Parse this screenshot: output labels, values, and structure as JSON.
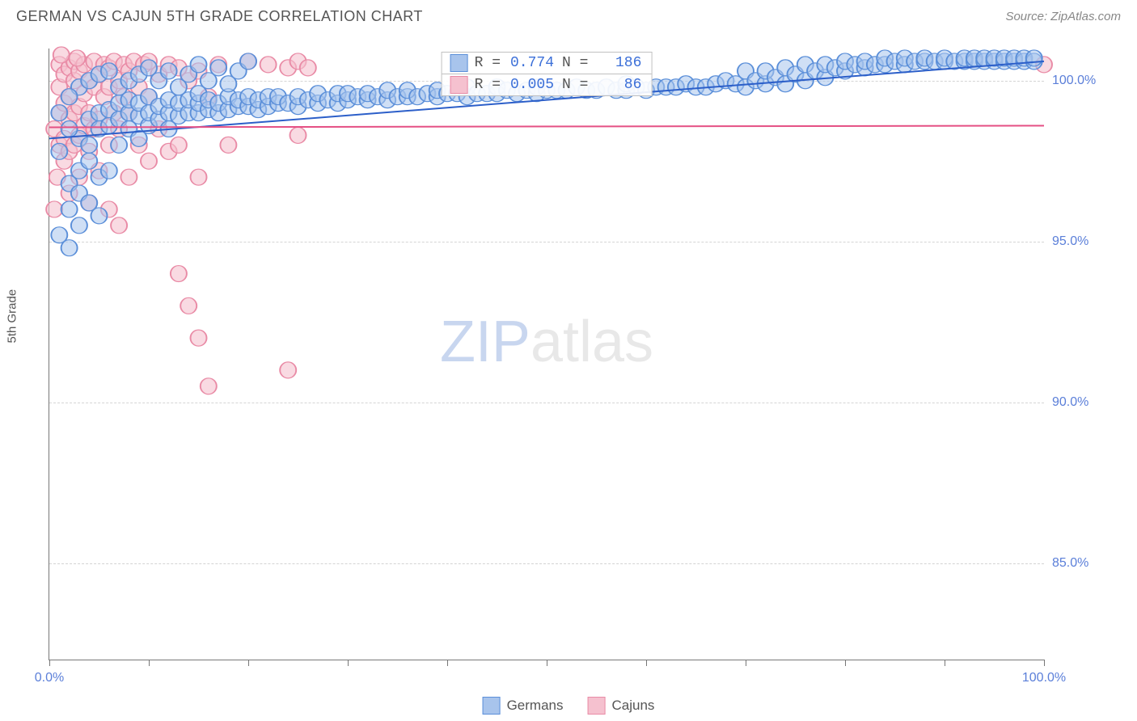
{
  "title": "GERMAN VS CAJUN 5TH GRADE CORRELATION CHART",
  "source": "Source: ZipAtlas.com",
  "ylabel": "5th Grade",
  "watermark_bold": "ZIP",
  "watermark_light": "atlas",
  "chart": {
    "type": "scatter",
    "xlim": [
      0,
      100
    ],
    "ylim": [
      82,
      101
    ],
    "x_ticks": [
      0,
      10,
      20,
      30,
      40,
      50,
      60,
      70,
      80,
      90,
      100
    ],
    "x_tick_labels": {
      "0": "0.0%",
      "100": "100.0%"
    },
    "y_ticks": [
      85,
      90,
      95,
      100
    ],
    "y_tick_labels": [
      "85.0%",
      "90.0%",
      "95.0%",
      "100.0%"
    ],
    "grid_color": "#d4d4d4",
    "background": "#ffffff",
    "axis_color": "#777777",
    "tick_label_color": "#5b7fd9",
    "series": [
      {
        "name": "Germans",
        "color_fill": "#a8c4ec",
        "color_stroke": "#5b8fd9",
        "marker_r": 10,
        "marker_opacity": 0.55,
        "R": "0.774",
        "N": "186",
        "trend": {
          "x1": 0,
          "y1": 98.2,
          "x2": 100,
          "y2": 100.6,
          "color": "#2c5fc9",
          "width": 2
        },
        "points": [
          [
            1,
            95.2
          ],
          [
            2,
            96.0
          ],
          [
            2,
            96.8
          ],
          [
            3,
            96.5
          ],
          [
            3,
            97.2
          ],
          [
            3,
            98.2
          ],
          [
            4,
            97.5
          ],
          [
            4,
            98.0
          ],
          [
            4,
            98.8
          ],
          [
            5,
            95.8
          ],
          [
            5,
            97.0
          ],
          [
            5,
            98.5
          ],
          [
            5,
            99.0
          ],
          [
            6,
            97.2
          ],
          [
            6,
            98.6
          ],
          [
            6,
            99.1
          ],
          [
            7,
            98.0
          ],
          [
            7,
            98.8
          ],
          [
            7,
            99.3
          ],
          [
            8,
            98.5
          ],
          [
            8,
            99.0
          ],
          [
            8,
            99.4
          ],
          [
            9,
            98.2
          ],
          [
            9,
            98.9
          ],
          [
            9,
            99.3
          ],
          [
            10,
            98.6
          ],
          [
            10,
            99.0
          ],
          [
            10,
            99.5
          ],
          [
            11,
            98.8
          ],
          [
            11,
            99.2
          ],
          [
            12,
            98.5
          ],
          [
            12,
            99.0
          ],
          [
            12,
            99.4
          ],
          [
            13,
            98.9
          ],
          [
            13,
            99.3
          ],
          [
            14,
            99.0
          ],
          [
            14,
            99.4
          ],
          [
            15,
            99.0
          ],
          [
            15,
            99.3
          ],
          [
            15,
            99.6
          ],
          [
            16,
            99.1
          ],
          [
            16,
            99.4
          ],
          [
            17,
            99.0
          ],
          [
            17,
            99.3
          ],
          [
            18,
            99.1
          ],
          [
            18,
            99.5
          ],
          [
            19,
            99.2
          ],
          [
            19,
            99.4
          ],
          [
            20,
            99.2
          ],
          [
            20,
            99.5
          ],
          [
            21,
            99.1
          ],
          [
            21,
            99.4
          ],
          [
            22,
            99.2
          ],
          [
            22,
            99.5
          ],
          [
            23,
            99.3
          ],
          [
            23,
            99.5
          ],
          [
            24,
            99.3
          ],
          [
            25,
            99.2
          ],
          [
            25,
            99.5
          ],
          [
            26,
            99.4
          ],
          [
            27,
            99.3
          ],
          [
            27,
            99.6
          ],
          [
            28,
            99.4
          ],
          [
            29,
            99.3
          ],
          [
            29,
            99.6
          ],
          [
            30,
            99.4
          ],
          [
            30,
            99.6
          ],
          [
            31,
            99.5
          ],
          [
            32,
            99.4
          ],
          [
            32,
            99.6
          ],
          [
            33,
            99.5
          ],
          [
            34,
            99.4
          ],
          [
            34,
            99.7
          ],
          [
            35,
            99.5
          ],
          [
            36,
            99.5
          ],
          [
            36,
            99.7
          ],
          [
            37,
            99.5
          ],
          [
            38,
            99.6
          ],
          [
            39,
            99.5
          ],
          [
            39,
            99.7
          ],
          [
            40,
            99.6
          ],
          [
            41,
            99.6
          ],
          [
            42,
            99.5
          ],
          [
            42,
            99.8
          ],
          [
            43,
            99.6
          ],
          [
            44,
            99.6
          ],
          [
            45,
            99.6
          ],
          [
            45,
            99.8
          ],
          [
            46,
            99.7
          ],
          [
            47,
            99.6
          ],
          [
            48,
            99.7
          ],
          [
            49,
            99.6
          ],
          [
            49,
            99.8
          ],
          [
            50,
            99.7
          ],
          [
            51,
            99.7
          ],
          [
            52,
            99.7
          ],
          [
            53,
            99.8
          ],
          [
            54,
            99.7
          ],
          [
            55,
            99.7
          ],
          [
            56,
            99.8
          ],
          [
            57,
            99.7
          ],
          [
            58,
            99.7
          ],
          [
            58,
            99.9
          ],
          [
            59,
            99.8
          ],
          [
            60,
            99.7
          ],
          [
            61,
            99.8
          ],
          [
            62,
            99.8
          ],
          [
            63,
            99.8
          ],
          [
            64,
            99.9
          ],
          [
            65,
            99.8
          ],
          [
            66,
            99.8
          ],
          [
            67,
            99.9
          ],
          [
            68,
            100.0
          ],
          [
            69,
            99.9
          ],
          [
            70,
            99.8
          ],
          [
            70,
            100.3
          ],
          [
            71,
            100.0
          ],
          [
            72,
            99.9
          ],
          [
            72,
            100.3
          ],
          [
            73,
            100.1
          ],
          [
            74,
            99.9
          ],
          [
            74,
            100.4
          ],
          [
            75,
            100.2
          ],
          [
            76,
            100.0
          ],
          [
            76,
            100.5
          ],
          [
            77,
            100.3
          ],
          [
            78,
            100.1
          ],
          [
            78,
            100.5
          ],
          [
            79,
            100.4
          ],
          [
            80,
            100.3
          ],
          [
            80,
            100.6
          ],
          [
            81,
            100.5
          ],
          [
            82,
            100.4
          ],
          [
            82,
            100.6
          ],
          [
            83,
            100.5
          ],
          [
            84,
            100.5
          ],
          [
            84,
            100.7
          ],
          [
            85,
            100.6
          ],
          [
            86,
            100.5
          ],
          [
            86,
            100.7
          ],
          [
            87,
            100.6
          ],
          [
            88,
            100.6
          ],
          [
            88,
            100.7
          ],
          [
            89,
            100.6
          ],
          [
            90,
            100.6
          ],
          [
            90,
            100.7
          ],
          [
            91,
            100.6
          ],
          [
            92,
            100.6
          ],
          [
            92,
            100.7
          ],
          [
            93,
            100.6
          ],
          [
            93,
            100.7
          ],
          [
            94,
            100.6
          ],
          [
            94,
            100.7
          ],
          [
            95,
            100.6
          ],
          [
            95,
            100.7
          ],
          [
            96,
            100.6
          ],
          [
            96,
            100.7
          ],
          [
            97,
            100.6
          ],
          [
            97,
            100.7
          ],
          [
            98,
            100.6
          ],
          [
            98,
            100.7
          ],
          [
            99,
            100.6
          ],
          [
            99,
            100.7
          ],
          [
            3,
            99.8
          ],
          [
            4,
            100.0
          ],
          [
            5,
            100.2
          ],
          [
            6,
            100.3
          ],
          [
            7,
            99.8
          ],
          [
            8,
            100.0
          ],
          [
            9,
            100.2
          ],
          [
            10,
            100.4
          ],
          [
            11,
            100.0
          ],
          [
            12,
            100.3
          ],
          [
            13,
            99.8
          ],
          [
            14,
            100.2
          ],
          [
            15,
            100.5
          ],
          [
            16,
            100.0
          ],
          [
            17,
            100.4
          ],
          [
            18,
            99.9
          ],
          [
            19,
            100.3
          ],
          [
            20,
            100.6
          ],
          [
            2,
            94.8
          ],
          [
            3,
            95.5
          ],
          [
            4,
            96.2
          ],
          [
            2,
            98.5
          ],
          [
            1,
            97.8
          ],
          [
            1,
            99.0
          ],
          [
            2,
            99.5
          ]
        ]
      },
      {
        "name": "Cajuns",
        "color_fill": "#f5c1cf",
        "color_stroke": "#e98ba6",
        "marker_r": 10,
        "marker_opacity": 0.6,
        "R": "0.005",
        "N": "86",
        "trend": {
          "x1": 0,
          "y1": 98.55,
          "x2": 100,
          "y2": 98.6,
          "color": "#e55084",
          "width": 2
        },
        "points": [
          [
            0.5,
            98.5
          ],
          [
            1,
            98.0
          ],
          [
            1,
            99.0
          ],
          [
            1,
            99.8
          ],
          [
            1,
            100.5
          ],
          [
            1.5,
            97.5
          ],
          [
            1.5,
            98.2
          ],
          [
            1.5,
            99.3
          ],
          [
            1.5,
            100.2
          ],
          [
            2,
            96.5
          ],
          [
            2,
            97.8
          ],
          [
            2,
            98.8
          ],
          [
            2,
            99.5
          ],
          [
            2,
            100.4
          ],
          [
            2.5,
            98.0
          ],
          [
            2.5,
            99.0
          ],
          [
            2.5,
            100.0
          ],
          [
            2.5,
            100.6
          ],
          [
            3,
            97.0
          ],
          [
            3,
            98.3
          ],
          [
            3,
            99.2
          ],
          [
            3,
            100.3
          ],
          [
            3.5,
            98.6
          ],
          [
            3.5,
            99.6
          ],
          [
            3.5,
            100.5
          ],
          [
            4,
            96.2
          ],
          [
            4,
            97.8
          ],
          [
            4,
            99.0
          ],
          [
            4,
            100.0
          ],
          [
            4.5,
            98.5
          ],
          [
            4.5,
            99.8
          ],
          [
            4.5,
            100.6
          ],
          [
            5,
            97.2
          ],
          [
            5,
            98.8
          ],
          [
            5,
            100.2
          ],
          [
            5.5,
            99.5
          ],
          [
            5.5,
            100.5
          ],
          [
            6,
            96.0
          ],
          [
            6,
            98.0
          ],
          [
            6,
            99.8
          ],
          [
            6,
            100.4
          ],
          [
            6.5,
            99.0
          ],
          [
            6.5,
            100.6
          ],
          [
            7,
            95.5
          ],
          [
            7,
            98.5
          ],
          [
            7,
            100.0
          ],
          [
            7.5,
            99.5
          ],
          [
            7.5,
            100.5
          ],
          [
            8,
            97.0
          ],
          [
            8,
            99.0
          ],
          [
            8,
            100.3
          ],
          [
            8.5,
            100.6
          ],
          [
            9,
            98.0
          ],
          [
            9,
            99.8
          ],
          [
            9.5,
            100.5
          ],
          [
            10,
            97.5
          ],
          [
            10,
            99.5
          ],
          [
            10,
            100.6
          ],
          [
            11,
            98.5
          ],
          [
            11,
            100.2
          ],
          [
            12,
            97.8
          ],
          [
            12,
            100.5
          ],
          [
            13,
            94.0
          ],
          [
            13,
            98.0
          ],
          [
            13,
            100.4
          ],
          [
            14,
            93.0
          ],
          [
            14,
            100.0
          ],
          [
            15,
            97.0
          ],
          [
            15,
            92.0
          ],
          [
            15,
            100.3
          ],
          [
            16,
            90.5
          ],
          [
            16,
            99.5
          ],
          [
            17,
            100.5
          ],
          [
            18,
            98.0
          ],
          [
            20,
            100.6
          ],
          [
            22,
            100.5
          ],
          [
            24,
            100.4
          ],
          [
            24,
            91.0
          ],
          [
            25,
            98.3
          ],
          [
            25,
            100.6
          ],
          [
            26,
            100.4
          ],
          [
            0.8,
            97.0
          ],
          [
            0.5,
            96.0
          ],
          [
            1.2,
            100.8
          ],
          [
            2.8,
            100.7
          ],
          [
            100,
            100.5
          ]
        ]
      }
    ]
  },
  "stats_labels": {
    "R": "R =",
    "N": "N ="
  },
  "legend": [
    {
      "label": "Germans",
      "fill": "#a8c4ec",
      "stroke": "#5b8fd9"
    },
    {
      "label": "Cajuns",
      "fill": "#f5c1cf",
      "stroke": "#e98ba6"
    }
  ]
}
